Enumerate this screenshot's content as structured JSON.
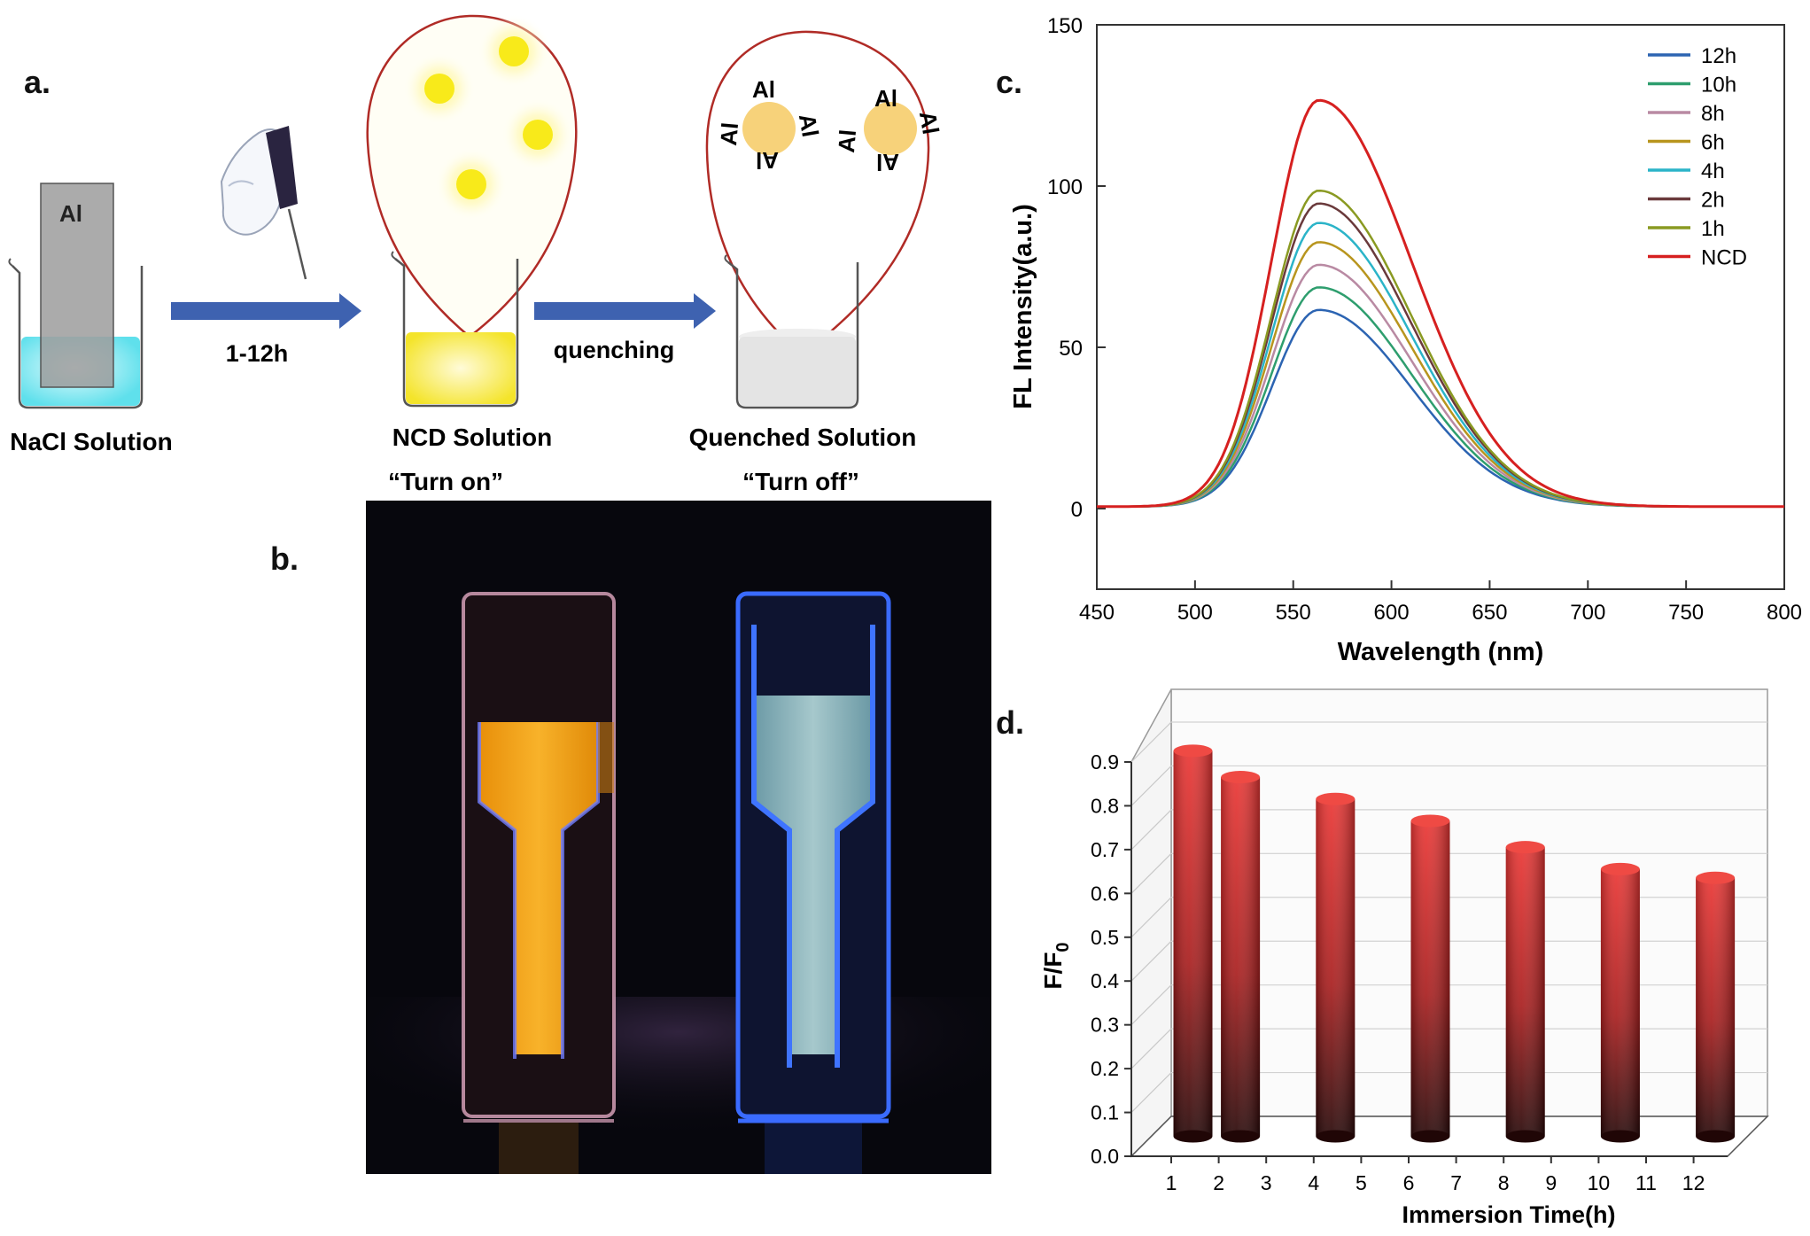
{
  "panels": {
    "a": "a.",
    "b": "b.",
    "c": "c.",
    "d": "d."
  },
  "scheme": {
    "metal_label": "Al",
    "beaker1_caption": "NaCl Solution",
    "arrow1_label": "1-12h",
    "beaker2_caption": "NCD Solution",
    "beaker2_state": "“Turn on”",
    "arrow2_label": "quenching",
    "beaker3_caption": "Quenched Solution",
    "beaker3_state": "“Turn off”",
    "particle_label": "Al",
    "colors": {
      "nacl": "#5fe0ec",
      "ncd": "#f7ea2a",
      "quenched": "#dcdcdc",
      "arrow": "#3e62b0",
      "bubble": "#b02b26",
      "particle": "#f7d27a"
    }
  },
  "photo": {
    "colors": {
      "background": "#07070d",
      "left_liquid": "#f3a214",
      "right_liquid": "#8fb7bd",
      "uv_glow": "#2f5cff"
    }
  },
  "chart_data": [
    {
      "type": "line",
      "panel": "c.",
      "xlabel": "Wavelength (nm)",
      "ylabel": "FL Intensity(a.u.)",
      "xlim": [
        450,
        800
      ],
      "ylim": [
        -25,
        150
      ],
      "xticks": [
        450,
        500,
        550,
        600,
        650,
        700,
        750,
        800
      ],
      "yticks": [
        0,
        50,
        100,
        150
      ],
      "legend_position": "top-right",
      "peak_x": 563,
      "series": [
        {
          "name": "12h",
          "color": "#2c64b2",
          "peak": 61
        },
        {
          "name": "10h",
          "color": "#2e9e6e",
          "peak": 68
        },
        {
          "name": "8h",
          "color": "#b98aa3",
          "peak": 75
        },
        {
          "name": "6h",
          "color": "#b8951e",
          "peak": 82
        },
        {
          "name": "4h",
          "color": "#2bb4c8",
          "peak": 88
        },
        {
          "name": "2h",
          "color": "#6a3a3c",
          "peak": 94
        },
        {
          "name": "1h",
          "color": "#8a9a22",
          "peak": 98
        },
        {
          "name": "NCD",
          "color": "#d62020",
          "peak": 126
        }
      ]
    },
    {
      "type": "bar",
      "panel": "d.",
      "style": "3d-cylinder",
      "xlabel": "Immersion Time(h)",
      "ylabel": "F/F",
      "ylabel_subscript": "0",
      "ylim": [
        0.0,
        0.9
      ],
      "yticks": [
        "0.0",
        "0.1",
        "0.2",
        "0.3",
        "0.4",
        "0.5",
        "0.6",
        "0.7",
        "0.8",
        "0.9"
      ],
      "categories": [
        "1",
        "2",
        "3",
        "4",
        "5",
        "6",
        "7",
        "8",
        "9",
        "10",
        "11",
        "12"
      ],
      "bars": [
        {
          "x": "1",
          "value": 0.88
        },
        {
          "x": "2",
          "value": 0.82
        },
        {
          "x": "4",
          "value": 0.77
        },
        {
          "x": "6",
          "value": 0.72
        },
        {
          "x": "8",
          "value": 0.66
        },
        {
          "x": "10",
          "value": 0.61
        },
        {
          "x": "12",
          "value": 0.59
        }
      ],
      "colors": {
        "top": "#e8322f",
        "bottom": "#2b0a0a"
      }
    }
  ]
}
